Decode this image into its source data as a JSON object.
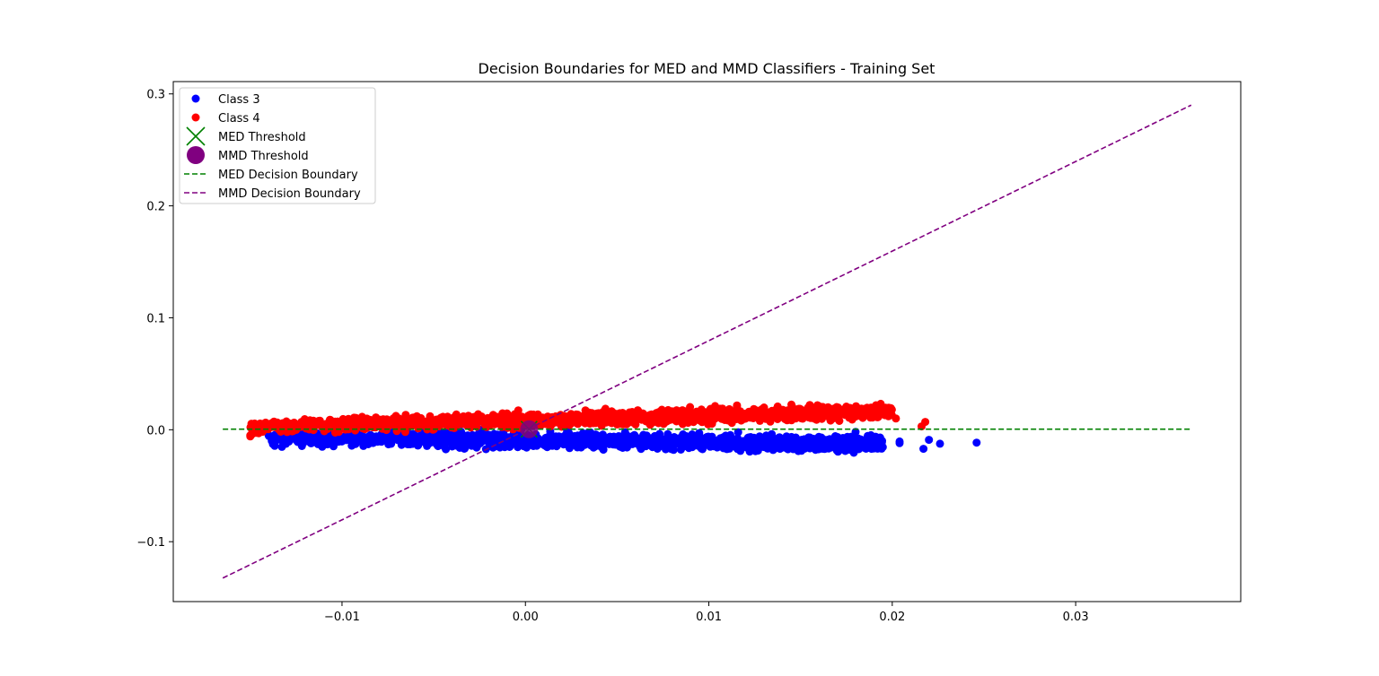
{
  "chart_data": {
    "type": "scatter",
    "title": "Decision Boundaries for MED and MMD Classifiers - Training Set",
    "xlabel": "",
    "ylabel": "",
    "xlim": [
      -0.0192,
      0.039
    ],
    "ylim": [
      -0.1535,
      0.311
    ],
    "xticks": [
      {
        "value": -0.01,
        "label": "−0.01"
      },
      {
        "value": 0.0,
        "label": "0.00"
      },
      {
        "value": 0.01,
        "label": "0.01"
      },
      {
        "value": 0.02,
        "label": "0.02"
      },
      {
        "value": 0.03,
        "label": "0.03"
      }
    ],
    "yticks": [
      {
        "value": -0.1,
        "label": "−0.1"
      },
      {
        "value": 0.0,
        "label": "0.0"
      },
      {
        "value": 0.1,
        "label": "0.1"
      },
      {
        "value": 0.2,
        "label": "0.2"
      },
      {
        "value": 0.3,
        "label": "0.3"
      }
    ],
    "grid": false,
    "legend_position": "upper-left",
    "legend": [
      {
        "label": "Class 3",
        "marker": "dot",
        "color": "#0000ff"
      },
      {
        "label": "Class 4",
        "marker": "dot",
        "color": "#ff0000"
      },
      {
        "label": "MED Threshold",
        "marker": "x",
        "color": "#008000"
      },
      {
        "label": "MMD Threshold",
        "marker": "big-dot",
        "color": "#800080"
      },
      {
        "label": "MED Decision Boundary",
        "marker": "dashed-line",
        "color": "#008000"
      },
      {
        "label": "MMD Decision Boundary",
        "marker": "dashed-line",
        "color": "#800080"
      }
    ],
    "series": [
      {
        "name": "Class 3",
        "kind": "scatter",
        "color": "#0000ff",
        "cloud": {
          "x_min": -0.014,
          "x_max": 0.0195,
          "y_center_at_x0": -0.0095,
          "y_slope": -0.15,
          "y_spread": 0.0065,
          "count": 1400
        },
        "points": [
          {
            "x": 0.022,
            "y": -0.009
          },
          {
            "x": 0.0226,
            "y": -0.0125
          },
          {
            "x": 0.0217,
            "y": -0.017
          },
          {
            "x": 0.0246,
            "y": -0.0115
          },
          {
            "x": 0.0204,
            "y": -0.012
          },
          {
            "x": 0.0204,
            "y": -0.0105
          },
          {
            "x": 0.0188,
            "y": -0.013
          },
          {
            "x": 0.018,
            "y": -0.002
          },
          {
            "x": 0.0177,
            "y": -0.007
          },
          {
            "x": -0.014,
            "y": -0.005
          },
          {
            "x": -0.0132,
            "y": -0.002
          }
        ]
      },
      {
        "name": "Class 4",
        "kind": "scatter",
        "color": "#ff0000",
        "cloud": {
          "x_min": -0.015,
          "x_max": 0.02,
          "y_center_at_x0": 0.0085,
          "y_slope": 0.4,
          "y_spread": 0.006,
          "count": 1400
        },
        "points": [
          {
            "x": -0.015,
            "y": -0.005
          },
          {
            "x": -0.015,
            "y": -0.006
          },
          {
            "x": -0.0143,
            "y": 0.001
          },
          {
            "x": 0.0216,
            "y": 0.003
          },
          {
            "x": 0.0218,
            "y": 0.007
          },
          {
            "x": 0.0202,
            "y": 0.01
          },
          {
            "x": 0.0196,
            "y": 0.013
          },
          {
            "x": 0.019,
            "y": 0.014
          },
          {
            "x": 0.0172,
            "y": 0.015
          },
          {
            "x": 0.018,
            "y": 0.012
          }
        ]
      },
      {
        "name": "MED Decision Boundary",
        "kind": "line",
        "dashed": true,
        "color": "#008000",
        "x": [
          -0.0165,
          0.0363
        ],
        "y": [
          0.0005,
          0.0005
        ]
      },
      {
        "name": "MMD Decision Boundary",
        "kind": "line",
        "dashed": true,
        "color": "#800080",
        "x": [
          -0.0165,
          0.0363
        ],
        "y": [
          -0.1325,
          0.29
        ]
      },
      {
        "name": "MED Threshold",
        "kind": "marker",
        "marker": "x",
        "color": "#008000",
        "x": [
          0.0002
        ],
        "y": [
          0.0005
        ]
      },
      {
        "name": "MMD Threshold",
        "kind": "marker",
        "marker": "big-dot",
        "color": "#800080",
        "x": [
          0.0002
        ],
        "y": [
          0.0005
        ]
      }
    ]
  }
}
